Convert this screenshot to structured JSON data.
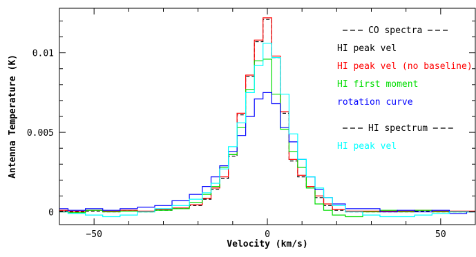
{
  "chart_data": {
    "type": "line",
    "step": true,
    "xlabel": "Velocity (km/s)",
    "ylabel": "Antenna Temperature (K)",
    "xlim": [
      -60,
      60
    ],
    "ylim": [
      -0.0008,
      0.0128
    ],
    "x_ticks": [
      {
        "value": -50,
        "label": "−50"
      },
      {
        "value": 0,
        "label": "0"
      },
      {
        "value": 50,
        "label": "50"
      }
    ],
    "y_ticks": [
      {
        "value": 0,
        "label": "0"
      },
      {
        "value": 0.005,
        "label": "0.005"
      },
      {
        "value": 0.01,
        "label": "0.01"
      }
    ],
    "legend": {
      "placement": "top-right",
      "groups": [
        {
          "header": "CO spectra",
          "header_color": "#000000",
          "entries": [
            {
              "label": "HI peak vel",
              "color": "#000000"
            },
            {
              "label": "HI peak vel (no baseline)",
              "color": "#ff0000"
            },
            {
              "label": "HI first moment",
              "color": "#00dd00"
            },
            {
              "label": "rotation curve",
              "color": "#0000ff"
            }
          ]
        },
        {
          "header": "HI spectrum",
          "header_color": "#000000",
          "entries": [
            {
              "label": "HI peak vel",
              "color": "#00ffff"
            }
          ]
        }
      ]
    },
    "series": [
      {
        "color": "#000000",
        "dashed": true,
        "x": [
          -60,
          -55,
          -50,
          -45,
          -40,
          -35,
          -30,
          -25,
          -20,
          -17.5,
          -15,
          -12.5,
          -10,
          -7.5,
          -5,
          -2.5,
          0,
          2.5,
          5,
          7.5,
          10,
          12.5,
          15,
          17.5,
          20,
          25,
          30,
          35,
          40,
          45,
          50,
          55,
          60
        ],
        "values": [
          5e-05,
          0.0,
          5e-05,
          0.0,
          5e-05,
          0.0,
          0.0001,
          0.0002,
          0.0004,
          0.0008,
          0.0014,
          0.0021,
          0.0035,
          0.0061,
          0.0085,
          0.0107,
          0.0121,
          0.0097,
          0.0062,
          0.0032,
          0.0022,
          0.0015,
          0.0009,
          0.0004,
          0.0001,
          0.0,
          0.0,
          0.0,
          0.0,
          5e-05,
          0.0,
          0.0,
          0.0
        ]
      },
      {
        "color": "#ff0000",
        "dashed": false,
        "x": [
          -60,
          -55,
          -50,
          -45,
          -40,
          -35,
          -30,
          -25,
          -20,
          -17.5,
          -15,
          -12.5,
          -10,
          -7.5,
          -5,
          -2.5,
          0,
          2.5,
          5,
          7.5,
          10,
          12.5,
          15,
          17.5,
          20,
          25,
          30,
          35,
          40,
          45,
          50,
          55,
          60
        ],
        "values": [
          0.0001,
          5e-05,
          0.0001,
          5e-05,
          0.0001,
          5e-05,
          0.00015,
          0.00025,
          0.00045,
          0.00085,
          0.0015,
          0.0022,
          0.0036,
          0.0062,
          0.0086,
          0.0108,
          0.0122,
          0.0098,
          0.0063,
          0.0033,
          0.0023,
          0.0016,
          0.001,
          0.0005,
          0.00015,
          5e-05,
          5e-05,
          5e-05,
          5e-05,
          0.0001,
          5e-05,
          5e-05,
          5e-05
        ]
      },
      {
        "color": "#00dd00",
        "dashed": false,
        "x": [
          -60,
          -55,
          -50,
          -45,
          -40,
          -35,
          -30,
          -25,
          -20,
          -17.5,
          -15,
          -12.5,
          -10,
          -7.5,
          -5,
          -2.5,
          0,
          2.5,
          5,
          7.5,
          10,
          12.5,
          15,
          17.5,
          20,
          25,
          30,
          35,
          40,
          45,
          50,
          55,
          60
        ],
        "values": [
          0.0,
          -5e-05,
          0.0001,
          0.0,
          5e-05,
          0.0,
          0.0001,
          0.0002,
          0.0006,
          0.0011,
          0.0016,
          0.0028,
          0.0036,
          0.0053,
          0.0077,
          0.0095,
          0.0096,
          0.0074,
          0.0052,
          0.0038,
          0.0028,
          0.0015,
          0.0005,
          0.0001,
          -0.0002,
          -0.0003,
          0.0,
          0.0001,
          0.0,
          0.0001,
          0.0,
          0.0,
          0.0
        ]
      },
      {
        "color": "#0000ff",
        "dashed": false,
        "x": [
          -60,
          -55,
          -50,
          -45,
          -40,
          -35,
          -30,
          -25,
          -20,
          -17.5,
          -15,
          -12.5,
          -10,
          -7.5,
          -5,
          -2.5,
          0,
          2.5,
          5,
          7.5,
          10,
          12.5,
          15,
          17.5,
          20,
          25,
          30,
          35,
          40,
          45,
          50,
          55,
          60
        ],
        "values": [
          0.0002,
          0.0001,
          0.0002,
          0.0001,
          0.0002,
          0.0003,
          0.0004,
          0.0007,
          0.0011,
          0.0016,
          0.0022,
          0.0029,
          0.0038,
          0.0048,
          0.006,
          0.0071,
          0.0075,
          0.0068,
          0.0053,
          0.0044,
          0.0033,
          0.0022,
          0.0014,
          0.0009,
          0.0005,
          0.0002,
          0.0002,
          0.0,
          0.0001,
          0.0,
          0.0001,
          -0.0001,
          0.0
        ]
      },
      {
        "color": "#00ffff",
        "dashed": false,
        "x": [
          -60,
          -55,
          -50,
          -45,
          -40,
          -35,
          -30,
          -25,
          -20,
          -17.5,
          -15,
          -12.5,
          -10,
          -7.5,
          -5,
          -2.5,
          0,
          2.5,
          5,
          7.5,
          10,
          12.5,
          15,
          17.5,
          20,
          25,
          30,
          35,
          40,
          45,
          50,
          55,
          60
        ],
        "values": [
          0.0,
          -0.0001,
          -0.0002,
          -0.0003,
          -0.0002,
          0.0,
          0.0002,
          0.0004,
          0.0008,
          0.0012,
          0.0018,
          0.0027,
          0.0041,
          0.0056,
          0.0075,
          0.0092,
          0.0106,
          0.0097,
          0.0074,
          0.0049,
          0.0033,
          0.0022,
          0.0015,
          0.0009,
          0.0004,
          0.0,
          -0.0002,
          -0.0003,
          -0.0003,
          -0.0002,
          -0.0001,
          0.0,
          0.0
        ]
      }
    ]
  }
}
